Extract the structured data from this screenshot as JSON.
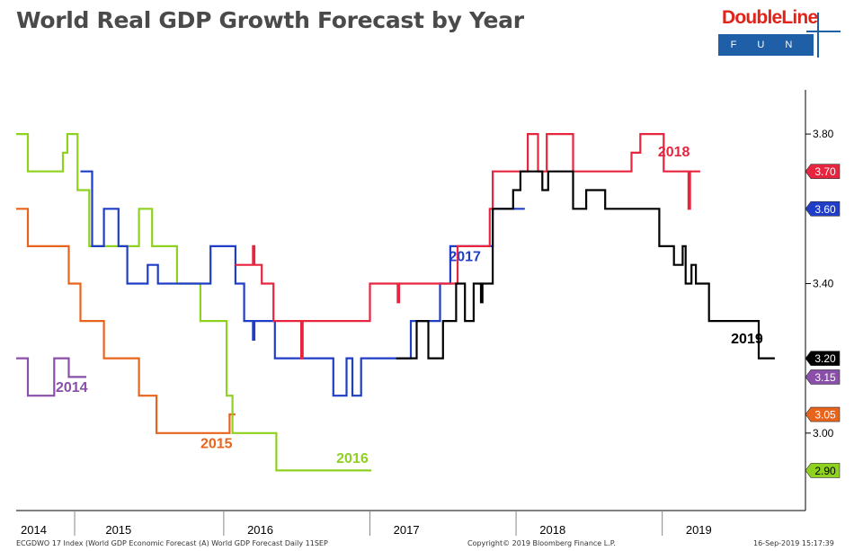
{
  "title": "World Real GDP Growth Forecast by Year",
  "logo": {
    "name": "DoubleLine",
    "sub": "F U N D S"
  },
  "footer": {
    "left": "ECGDWO 17 Index (World GDP Economic Forecast (A) World GDP Forecast  Daily 11SEP",
    "center": "Copyright© 2019 Bloomberg Finance L.P.",
    "right": "16-Sep-2019 15:17:39"
  },
  "chart_data": {
    "type": "line",
    "title": "World Real GDP Growth Forecast by Year",
    "xlabel": "",
    "ylabel": "",
    "x_range": [
      2014.0,
      2019.4
    ],
    "ylim": [
      2.8,
      3.87
    ],
    "y_ticks": [
      {
        "v": 3.0,
        "label": "3.00"
      },
      {
        "v": 3.4,
        "label": "3.40"
      },
      {
        "v": 3.8,
        "label": "3.80"
      }
    ],
    "x_ticks": [
      {
        "v": 2014.12,
        "label": "2014"
      },
      {
        "v": 2014.7,
        "label": "2015"
      },
      {
        "v": 2015.67,
        "label": "2016"
      },
      {
        "v": 2016.67,
        "label": "2017"
      },
      {
        "v": 2017.67,
        "label": "2018"
      },
      {
        "v": 2018.67,
        "label": "2019"
      }
    ],
    "x_dividers": [
      2014.4,
      2015.42,
      2016.42,
      2017.42,
      2018.42
    ],
    "grid": false,
    "series": [
      {
        "name": "2014",
        "color": "#8a4fa8",
        "label_x": 2014.38,
        "label_y": 3.11,
        "points": [
          [
            2014.0,
            3.2
          ],
          [
            2014.08,
            3.2
          ],
          [
            2014.08,
            3.1
          ],
          [
            2014.26,
            3.1
          ],
          [
            2014.26,
            3.2
          ],
          [
            2014.36,
            3.2
          ],
          [
            2014.36,
            3.15
          ],
          [
            2014.48,
            3.15
          ]
        ],
        "end_tag": "3.15"
      },
      {
        "name": "2015",
        "color": "#e8641c",
        "label_x": 2015.37,
        "label_y": 2.96,
        "points": [
          [
            2014.0,
            3.6
          ],
          [
            2014.08,
            3.6
          ],
          [
            2014.08,
            3.5
          ],
          [
            2014.36,
            3.5
          ],
          [
            2014.36,
            3.4
          ],
          [
            2014.44,
            3.4
          ],
          [
            2014.44,
            3.3
          ],
          [
            2014.6,
            3.3
          ],
          [
            2014.6,
            3.2
          ],
          [
            2014.84,
            3.2
          ],
          [
            2014.84,
            3.1
          ],
          [
            2014.96,
            3.1
          ],
          [
            2014.96,
            3.0
          ],
          [
            2015.46,
            3.0
          ],
          [
            2015.46,
            3.05
          ],
          [
            2015.5,
            3.05
          ]
        ],
        "end_tag": "3.05"
      },
      {
        "name": "2016",
        "color": "#8ed11f",
        "label_x": 2016.3,
        "label_y": 2.92,
        "points": [
          [
            2014.0,
            3.8
          ],
          [
            2014.08,
            3.8
          ],
          [
            2014.08,
            3.7
          ],
          [
            2014.32,
            3.7
          ],
          [
            2014.32,
            3.75
          ],
          [
            2014.35,
            3.75
          ],
          [
            2014.35,
            3.8
          ],
          [
            2014.42,
            3.8
          ],
          [
            2014.42,
            3.65
          ],
          [
            2014.5,
            3.65
          ],
          [
            2014.5,
            3.5
          ],
          [
            2014.84,
            3.5
          ],
          [
            2014.84,
            3.6
          ],
          [
            2014.93,
            3.6
          ],
          [
            2014.93,
            3.5
          ],
          [
            2015.1,
            3.5
          ],
          [
            2015.1,
            3.4
          ],
          [
            2015.26,
            3.4
          ],
          [
            2015.26,
            3.3
          ],
          [
            2015.44,
            3.3
          ],
          [
            2015.44,
            3.1
          ],
          [
            2015.48,
            3.1
          ],
          [
            2015.48,
            3.0
          ],
          [
            2015.78,
            3.0
          ],
          [
            2015.78,
            2.9
          ],
          [
            2016.43,
            2.9
          ]
        ],
        "end_tag": "2.90"
      },
      {
        "name": "2017",
        "color": "#1f3dc6",
        "label_x": 2017.07,
        "label_y": 3.46,
        "points": [
          [
            2014.44,
            3.7
          ],
          [
            2014.52,
            3.7
          ],
          [
            2014.52,
            3.5
          ],
          [
            2014.6,
            3.5
          ],
          [
            2014.6,
            3.6
          ],
          [
            2014.7,
            3.6
          ],
          [
            2014.7,
            3.5
          ],
          [
            2014.76,
            3.5
          ],
          [
            2014.76,
            3.4
          ],
          [
            2014.9,
            3.4
          ],
          [
            2014.9,
            3.45
          ],
          [
            2014.97,
            3.45
          ],
          [
            2014.97,
            3.4
          ],
          [
            2015.33,
            3.4
          ],
          [
            2015.33,
            3.5
          ],
          [
            2015.5,
            3.5
          ],
          [
            2015.5,
            3.4
          ],
          [
            2015.56,
            3.4
          ],
          [
            2015.56,
            3.3
          ],
          [
            2015.62,
            3.3
          ],
          [
            2015.62,
            3.25
          ],
          [
            2015.63,
            3.25
          ],
          [
            2015.63,
            3.3
          ],
          [
            2015.77,
            3.3
          ],
          [
            2015.77,
            3.2
          ],
          [
            2016.17,
            3.2
          ],
          [
            2016.17,
            3.1
          ],
          [
            2016.26,
            3.1
          ],
          [
            2016.26,
            3.2
          ],
          [
            2016.3,
            3.2
          ],
          [
            2016.3,
            3.1
          ],
          [
            2016.36,
            3.1
          ],
          [
            2016.36,
            3.2
          ],
          [
            2016.7,
            3.2
          ],
          [
            2016.7,
            3.3
          ],
          [
            2016.9,
            3.3
          ],
          [
            2016.9,
            3.4
          ],
          [
            2016.97,
            3.4
          ],
          [
            2016.97,
            3.5
          ],
          [
            2017.26,
            3.5
          ],
          [
            2017.26,
            3.6
          ],
          [
            2017.48,
            3.6
          ]
        ],
        "end_tag": "3.60"
      },
      {
        "name": "2018",
        "color": "#e8253f",
        "label_x": 2018.5,
        "label_y": 3.74,
        "points": [
          [
            2015.5,
            3.45
          ],
          [
            2015.62,
            3.45
          ],
          [
            2015.62,
            3.5
          ],
          [
            2015.63,
            3.5
          ],
          [
            2015.63,
            3.45
          ],
          [
            2015.68,
            3.45
          ],
          [
            2015.68,
            3.4
          ],
          [
            2015.76,
            3.4
          ],
          [
            2015.76,
            3.3
          ],
          [
            2015.95,
            3.3
          ],
          [
            2015.95,
            3.2
          ],
          [
            2015.96,
            3.2
          ],
          [
            2015.96,
            3.3
          ],
          [
            2016.42,
            3.3
          ],
          [
            2016.42,
            3.4
          ],
          [
            2016.61,
            3.4
          ],
          [
            2016.61,
            3.35
          ],
          [
            2016.62,
            3.35
          ],
          [
            2016.62,
            3.4
          ],
          [
            2017.02,
            3.4
          ],
          [
            2017.02,
            3.5
          ],
          [
            2017.24,
            3.5
          ],
          [
            2017.24,
            3.6
          ],
          [
            2017.26,
            3.6
          ],
          [
            2017.26,
            3.7
          ],
          [
            2017.5,
            3.7
          ],
          [
            2017.5,
            3.8
          ],
          [
            2017.57,
            3.8
          ],
          [
            2017.57,
            3.7
          ],
          [
            2017.63,
            3.7
          ],
          [
            2017.63,
            3.8
          ],
          [
            2017.81,
            3.8
          ],
          [
            2017.81,
            3.7
          ],
          [
            2018.21,
            3.7
          ],
          [
            2018.21,
            3.75
          ],
          [
            2018.27,
            3.75
          ],
          [
            2018.27,
            3.8
          ],
          [
            2018.43,
            3.8
          ],
          [
            2018.43,
            3.7
          ],
          [
            2018.6,
            3.7
          ],
          [
            2018.6,
            3.6
          ],
          [
            2018.61,
            3.6
          ],
          [
            2018.61,
            3.7
          ],
          [
            2018.68,
            3.7
          ]
        ],
        "end_tag": "3.70"
      },
      {
        "name": "2019",
        "color": "#000000",
        "label_x": 2019.0,
        "label_y": 3.24,
        "points": [
          [
            2016.6,
            3.2
          ],
          [
            2016.74,
            3.2
          ],
          [
            2016.74,
            3.3
          ],
          [
            2016.82,
            3.3
          ],
          [
            2016.82,
            3.2
          ],
          [
            2016.92,
            3.2
          ],
          [
            2016.92,
            3.3
          ],
          [
            2017.01,
            3.3
          ],
          [
            2017.01,
            3.4
          ],
          [
            2017.07,
            3.4
          ],
          [
            2017.07,
            3.3
          ],
          [
            2017.13,
            3.3
          ],
          [
            2017.13,
            3.4
          ],
          [
            2017.18,
            3.4
          ],
          [
            2017.18,
            3.35
          ],
          [
            2017.19,
            3.35
          ],
          [
            2017.19,
            3.4
          ],
          [
            2017.26,
            3.4
          ],
          [
            2017.26,
            3.6
          ],
          [
            2017.4,
            3.6
          ],
          [
            2017.4,
            3.65
          ],
          [
            2017.45,
            3.65
          ],
          [
            2017.45,
            3.7
          ],
          [
            2017.6,
            3.7
          ],
          [
            2017.6,
            3.65
          ],
          [
            2017.64,
            3.65
          ],
          [
            2017.64,
            3.7
          ],
          [
            2017.81,
            3.7
          ],
          [
            2017.81,
            3.6
          ],
          [
            2017.9,
            3.6
          ],
          [
            2017.9,
            3.65
          ],
          [
            2018.03,
            3.65
          ],
          [
            2018.03,
            3.6
          ],
          [
            2018.4,
            3.6
          ],
          [
            2018.4,
            3.5
          ],
          [
            2018.5,
            3.5
          ],
          [
            2018.5,
            3.45
          ],
          [
            2018.56,
            3.45
          ],
          [
            2018.56,
            3.5
          ],
          [
            2018.58,
            3.5
          ],
          [
            2018.58,
            3.4
          ],
          [
            2018.62,
            3.4
          ],
          [
            2018.62,
            3.45
          ],
          [
            2018.65,
            3.45
          ],
          [
            2018.65,
            3.4
          ],
          [
            2018.74,
            3.4
          ],
          [
            2018.74,
            3.3
          ],
          [
            2019.08,
            3.3
          ],
          [
            2019.08,
            3.2
          ],
          [
            2019.19,
            3.2
          ]
        ],
        "end_tag": "3.20"
      }
    ]
  }
}
